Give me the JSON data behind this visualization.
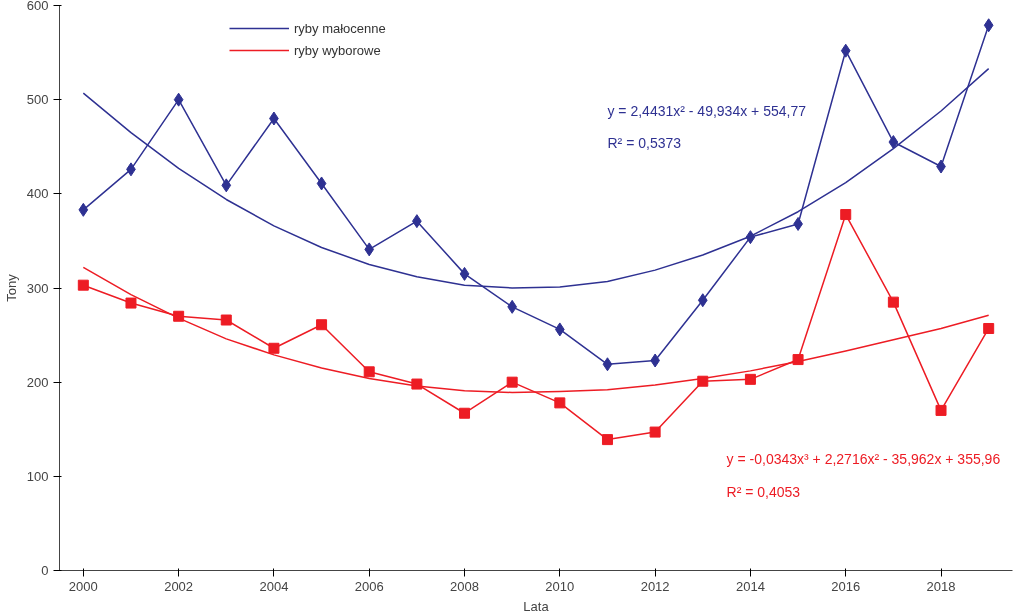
{
  "chart_data": {
    "type": "line",
    "xlabel": "Lata",
    "ylabel": "Tony",
    "categories": [
      "2000",
      null,
      "2002",
      null,
      "2004",
      null,
      "2006",
      null,
      "2008",
      null,
      "2010",
      null,
      "2012",
      null,
      "2014",
      null,
      "2016",
      null,
      "2018",
      null
    ],
    "series": [
      {
        "name": "ryby małocenne",
        "color": "#2e3192",
        "marker": "diamond",
        "values": [
          383,
          426,
          500,
          409,
          480,
          411,
          341,
          371,
          315,
          280,
          256,
          219,
          223,
          287,
          354,
          368,
          552,
          455,
          429,
          579
        ]
      },
      {
        "name": "ryby wyborowe",
        "color": "#ed1c24",
        "marker": "square",
        "values": [
          303,
          284,
          270,
          266,
          236,
          261,
          211,
          198,
          167,
          200,
          178,
          139,
          147,
          201,
          203,
          224,
          378,
          285,
          170,
          257
        ]
      },
      {
        "color": "#2e3192",
        "marker": "none",
        "values": [
          507,
          465,
          427,
          394,
          366,
          343,
          325,
          312,
          303,
          300,
          301,
          307,
          319,
          335,
          355,
          381,
          412,
          448,
          488,
          533
        ]
      },
      {
        "color": "#ed1c24",
        "marker": "none",
        "values": [
          322,
          293,
          268,
          246,
          229,
          215,
          204,
          196,
          191,
          189,
          190,
          192,
          197,
          204,
          212,
          222,
          233,
          245,
          257,
          271
        ]
      }
    ],
    "annotations": [
      "y = 2,4431x² - 49,934x + 554,77",
      "R² = 0,5373",
      "y = -0,0343x³ + 2,2716x² - 35,962x + 355,96",
      "R² = 0,4053"
    ],
    "ylim": [
      0,
      600
    ],
    "yticks": [
      0,
      100,
      200,
      300,
      400,
      500,
      600
    ],
    "grid": false,
    "legend": "top left"
  }
}
